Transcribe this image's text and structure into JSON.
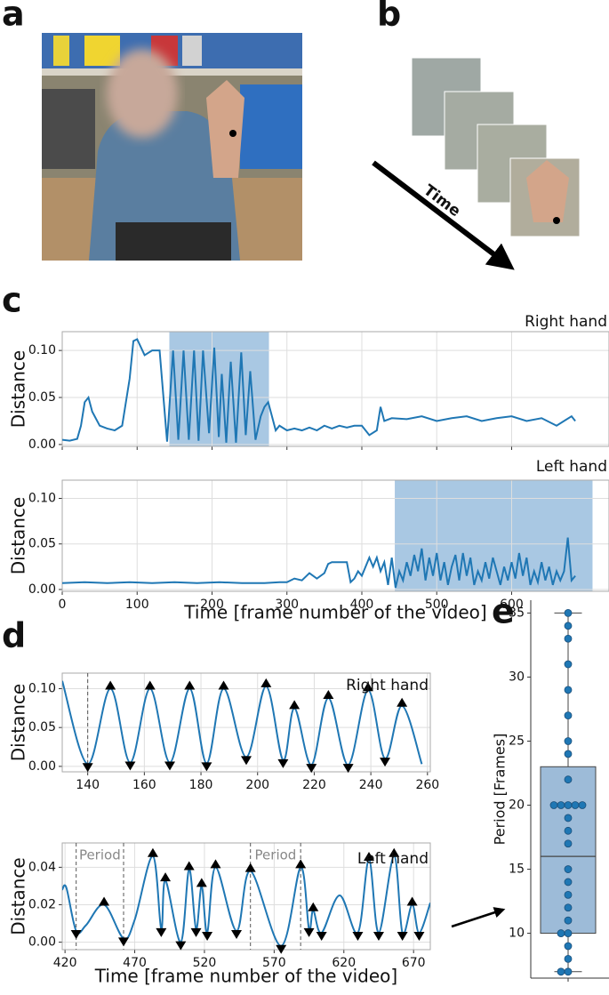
{
  "panel_labels": [
    "a",
    "b",
    "c",
    "d",
    "e"
  ],
  "time_label": "Time",
  "chart_data": [
    {
      "type": "line",
      "title": "Right hand",
      "ylabel": "Distance",
      "color": "#1f77b4",
      "grid": true,
      "xtick_labels": false,
      "smooth": false,
      "shade": [
        143,
        276
      ],
      "shade_color": "#a9c8e3",
      "xlim": [
        0,
        730
      ],
      "ylim": [
        -0.002,
        0.12
      ],
      "xticks": [
        0,
        100,
        200,
        300,
        400,
        500,
        600
      ],
      "yticks": [
        {
          "value": 0,
          "label": "0.00"
        },
        {
          "value": 0.05,
          "label": "0.05"
        },
        {
          "value": 0.1,
          "label": "0.10"
        }
      ],
      "x": [
        0,
        10,
        20,
        25,
        30,
        35,
        40,
        50,
        60,
        70,
        80,
        90,
        95,
        100,
        110,
        120,
        130,
        140,
        148,
        155,
        162,
        169,
        176,
        182,
        188,
        196,
        203,
        209,
        213,
        219,
        225,
        232,
        239,
        245,
        251,
        258,
        265,
        270,
        275,
        280,
        285,
        290,
        300,
        310,
        320,
        330,
        340,
        350,
        360,
        370,
        380,
        390,
        400,
        410,
        420,
        425,
        430,
        440,
        460,
        480,
        500,
        520,
        540,
        560,
        580,
        600,
        620,
        640,
        660,
        680,
        685
      ],
      "values": [
        0.005,
        0.004,
        0.006,
        0.02,
        0.045,
        0.05,
        0.035,
        0.02,
        0.017,
        0.015,
        0.02,
        0.07,
        0.11,
        0.112,
        0.095,
        0.1,
        0.1,
        0.003,
        0.1,
        0.005,
        0.1,
        0.005,
        0.1,
        0.004,
        0.1,
        0.012,
        0.103,
        0.008,
        0.075,
        0.002,
        0.088,
        0.002,
        0.098,
        0.01,
        0.078,
        0.005,
        0.03,
        0.04,
        0.045,
        0.03,
        0.015,
        0.02,
        0.015,
        0.017,
        0.015,
        0.018,
        0.015,
        0.02,
        0.017,
        0.02,
        0.018,
        0.02,
        0.02,
        0.01,
        0.015,
        0.04,
        0.025,
        0.028,
        0.027,
        0.03,
        0.025,
        0.028,
        0.03,
        0.025,
        0.028,
        0.03,
        0.025,
        0.028,
        0.02,
        0.03,
        0.025
      ]
    },
    {
      "type": "line",
      "title": "Left hand",
      "ylabel": "Distance",
      "xlabel": "Time [frame number of the video]",
      "color": "#1f77b4",
      "grid": true,
      "smooth": false,
      "shade": [
        444,
        708
      ],
      "shade_color": "#a9c8e3",
      "xlim": [
        0,
        730
      ],
      "ylim": [
        -0.002,
        0.12
      ],
      "xticks": [
        0,
        100,
        200,
        300,
        400,
        500,
        600
      ],
      "yticks": [
        {
          "value": 0,
          "label": "0.00"
        },
        {
          "value": 0.05,
          "label": "0.05"
        },
        {
          "value": 0.1,
          "label": "0.10"
        }
      ],
      "x": [
        0,
        30,
        60,
        90,
        120,
        150,
        180,
        210,
        240,
        270,
        290,
        300,
        310,
        320,
        330,
        340,
        350,
        355,
        360,
        370,
        380,
        385,
        390,
        395,
        400,
        410,
        415,
        420,
        425,
        430,
        435,
        440,
        445,
        450,
        455,
        460,
        465,
        470,
        475,
        480,
        485,
        490,
        495,
        500,
        505,
        510,
        515,
        520,
        525,
        530,
        535,
        540,
        545,
        550,
        555,
        560,
        565,
        570,
        575,
        580,
        585,
        590,
        595,
        600,
        605,
        610,
        615,
        620,
        625,
        630,
        635,
        640,
        645,
        650,
        655,
        660,
        665,
        670,
        675,
        680,
        685
      ],
      "values": [
        0.007,
        0.008,
        0.007,
        0.008,
        0.007,
        0.008,
        0.007,
        0.008,
        0.007,
        0.007,
        0.008,
        0.008,
        0.012,
        0.01,
        0.018,
        0.012,
        0.018,
        0.028,
        0.03,
        0.03,
        0.03,
        0.008,
        0.012,
        0.02,
        0.015,
        0.035,
        0.025,
        0.035,
        0.02,
        0.03,
        0.005,
        0.035,
        0.002,
        0.02,
        0.01,
        0.03,
        0.015,
        0.038,
        0.02,
        0.045,
        0.01,
        0.035,
        0.015,
        0.04,
        0.01,
        0.03,
        0.005,
        0.025,
        0.038,
        0.01,
        0.04,
        0.015,
        0.035,
        0.005,
        0.02,
        0.01,
        0.03,
        0.012,
        0.035,
        0.02,
        0.005,
        0.025,
        0.01,
        0.03,
        0.012,
        0.04,
        0.015,
        0.035,
        0.005,
        0.02,
        0.008,
        0.03,
        0.01,
        0.025,
        0.005,
        0.02,
        0.01,
        0.02,
        0.057,
        0.01,
        0.015
      ]
    },
    {
      "type": "line",
      "title": "Right hand",
      "ylabel": "Distance",
      "color": "#1f77b4",
      "grid": true,
      "smooth": true,
      "xlim": [
        131,
        261
      ],
      "ylim": [
        -0.007,
        0.12
      ],
      "xticks": [
        140,
        160,
        180,
        200,
        220,
        240,
        260
      ],
      "yticks": [
        {
          "value": 0,
          "label": "0.00"
        },
        {
          "value": 0.05,
          "label": "0.05"
        },
        {
          "value": 0.1,
          "label": "0.10"
        }
      ],
      "vlines": [
        140
      ],
      "x": [
        131,
        140,
        148,
        155,
        162,
        169,
        176,
        182,
        188,
        196,
        203,
        209,
        213,
        219,
        225,
        232,
        239,
        245,
        251,
        258
      ],
      "values": [
        0.11,
        0.003,
        0.1,
        0.005,
        0.1,
        0.005,
        0.1,
        0.004,
        0.1,
        0.012,
        0.103,
        0.008,
        0.075,
        0.002,
        0.088,
        0.002,
        0.098,
        0.01,
        0.078,
        0.003
      ],
      "peaks": {
        "x": [
          148,
          162,
          176,
          188,
          203,
          213,
          225,
          239,
          251
        ],
        "values": [
          0.1,
          0.1,
          0.1,
          0.1,
          0.103,
          0.075,
          0.088,
          0.098,
          0.078
        ]
      },
      "troughs": {
        "x": [
          140,
          155,
          169,
          182,
          196,
          209,
          219,
          232,
          245
        ],
        "values": [
          0.003,
          0.005,
          0.005,
          0.004,
          0.012,
          0.008,
          0.002,
          0.002,
          0.01
        ]
      }
    },
    {
      "type": "line",
      "title": "Left hand",
      "ylabel": "Distance",
      "xlabel": "Time [frame number of the video]",
      "color": "#1f77b4",
      "grid": true,
      "smooth": true,
      "xlim": [
        418,
        682
      ],
      "ylim": [
        -0.004,
        0.053
      ],
      "xticks": [
        420,
        470,
        520,
        570,
        620,
        670
      ],
      "yticks": [
        {
          "value": 0,
          "label": "0.00"
        },
        {
          "value": 0.02,
          "label": "0.02"
        },
        {
          "value": 0.04,
          "label": "0.04"
        }
      ],
      "vlines": [
        428,
        462,
        553,
        589
      ],
      "annotations": [
        "Period",
        "Period"
      ],
      "x": [
        418,
        421,
        428,
        435,
        448,
        462,
        470,
        483,
        489,
        492,
        503,
        509,
        514,
        518,
        522,
        528,
        543,
        553,
        575,
        589,
        595,
        598,
        604,
        617,
        630,
        638,
        645,
        656,
        662,
        669,
        674,
        682
      ],
      "values": [
        0.028,
        0.029,
        0.006,
        0.009,
        0.02,
        0.002,
        0.012,
        0.046,
        0.007,
        0.033,
        0.0,
        0.039,
        0.007,
        0.03,
        0.005,
        0.04,
        0.006,
        0.038,
        -0.002,
        0.04,
        0.007,
        0.017,
        0.005,
        0.025,
        0.005,
        0.044,
        0.005,
        0.046,
        0.005,
        0.02,
        0.005,
        0.021
      ],
      "peaks": {
        "x": [
          448,
          483,
          492,
          509,
          518,
          528,
          553,
          589,
          598,
          638,
          656,
          669
        ],
        "values": [
          0.02,
          0.046,
          0.033,
          0.039,
          0.03,
          0.04,
          0.038,
          0.04,
          0.017,
          0.044,
          0.046,
          0.02
        ]
      },
      "troughs": {
        "x": [
          428,
          462,
          489,
          503,
          514,
          522,
          543,
          575,
          595,
          604,
          630,
          645,
          662,
          674
        ],
        "values": [
          0.006,
          0.002,
          0.007,
          0.0,
          0.007,
          0.005,
          0.006,
          -0.002,
          0.007,
          0.005,
          0.005,
          0.005,
          0.005,
          0.005
        ]
      }
    },
    {
      "type": "box",
      "ylabel": "Period [Frames]",
      "color": "#1f77b4",
      "box_color": "#9dbbd8",
      "ylim": [
        6.5,
        36
      ],
      "yticks": [
        10,
        15,
        20,
        25,
        30,
        35
      ],
      "whisker_low": 7,
      "q1": 10,
      "median": 16,
      "q3": 23,
      "whisker_high": 35,
      "values": [
        35,
        34,
        33,
        31,
        29,
        27,
        25,
        24,
        22,
        20,
        20,
        20,
        20,
        20,
        19,
        18,
        17,
        15,
        14,
        13,
        12,
        11,
        10,
        10,
        9,
        8,
        7,
        7
      ]
    }
  ]
}
